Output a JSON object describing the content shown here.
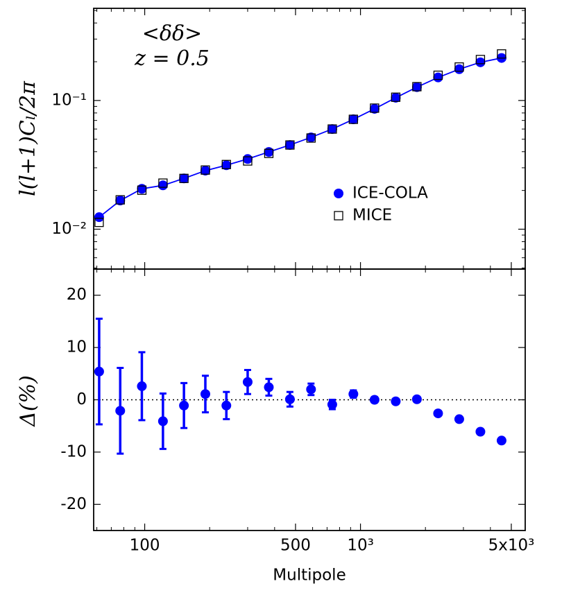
{
  "chart_data": [
    {
      "type": "line",
      "annotations": [
        "<δδ>",
        "z = 0.5"
      ],
      "ylabel": "l(l+1)Cₗ/2π",
      "x": [
        61.5,
        77,
        97,
        121.5,
        152,
        191,
        239,
        300,
        376,
        471,
        590,
        740,
        927,
        1162,
        1457,
        1826,
        2289,
        2869,
        3596,
        4507
      ],
      "series": [
        {
          "name": "ICE-COLA",
          "color": "#0000ff",
          "marker": "circle",
          "line": true,
          "values": [
            0.0124,
            0.0167,
            0.0206,
            0.0219,
            0.0248,
            0.0285,
            0.0314,
            0.0351,
            0.0398,
            0.0451,
            0.0517,
            0.06,
            0.0714,
            0.0861,
            0.105,
            0.127,
            0.151,
            0.175,
            0.198,
            0.214
          ]
        },
        {
          "name": "MICE",
          "color": "#000000",
          "marker": "square",
          "line": false,
          "values": [
            0.0113,
            0.0169,
            0.0201,
            0.0228,
            0.0248,
            0.0288,
            0.0318,
            0.0339,
            0.0388,
            0.0451,
            0.0511,
            0.06,
            0.0714,
            0.0872,
            0.106,
            0.128,
            0.157,
            0.182,
            0.208,
            0.23
          ]
        }
      ],
      "log_x": true,
      "log_y": true,
      "xlim": [
        58,
        5800
      ],
      "xticks": [
        100,
        500,
        1000,
        5000
      ],
      "show_xticklabels": false,
      "xminorticks": [
        60,
        70,
        80,
        90,
        200,
        300,
        400,
        600,
        700,
        800,
        900,
        2000,
        3000,
        4000
      ],
      "ylim": [
        0.0049,
        0.52
      ],
      "yticks": [
        {
          "value": 0.01,
          "label": "10⁻²"
        },
        {
          "value": 0.1,
          "label": "10⁻¹"
        }
      ],
      "yminorticks": [
        0.005,
        0.006,
        0.007,
        0.008,
        0.009,
        0.02,
        0.03,
        0.04,
        0.05,
        0.06,
        0.07,
        0.08,
        0.09,
        0.2,
        0.3,
        0.4,
        0.5
      ],
      "legend": "right"
    },
    {
      "type": "errorbar",
      "xlabel": "Multipole",
      "ylabel": "Δ(%)",
      "x": [
        61.5,
        77,
        97,
        121.5,
        152,
        191,
        239,
        300,
        376,
        471,
        590,
        740,
        927,
        1162,
        1457,
        1826,
        2289,
        2869,
        3596,
        4507
      ],
      "color": "#0000ff",
      "values": [
        5.4,
        -2.1,
        2.6,
        -4.1,
        -1.1,
        1.1,
        -1.1,
        3.4,
        2.4,
        0.1,
        2.0,
        -0.9,
        1.1,
        0.0,
        -0.3,
        0.1,
        -2.6,
        -3.7,
        -6.1,
        -7.8
      ],
      "errors": [
        10.1,
        8.2,
        6.5,
        5.3,
        4.3,
        3.5,
        2.6,
        2.3,
        1.6,
        1.4,
        1.1,
        0.9,
        0.7,
        0.5,
        0.4,
        0.3,
        0.3,
        0.3,
        0.3,
        0.3
      ],
      "reference_line": 0,
      "log_x": true,
      "xlim": [
        58,
        5800
      ],
      "xticks": [
        100,
        500,
        {
          "value": 1000,
          "label": "10³"
        },
        {
          "value": 5000,
          "label": "5x10³"
        }
      ],
      "xminorticks": [
        60,
        70,
        80,
        90,
        200,
        300,
        400,
        600,
        700,
        800,
        900,
        2000,
        3000,
        4000
      ],
      "ylim": [
        -25,
        25
      ],
      "yticks": [
        -20,
        -10,
        0,
        10,
        20
      ]
    }
  ]
}
